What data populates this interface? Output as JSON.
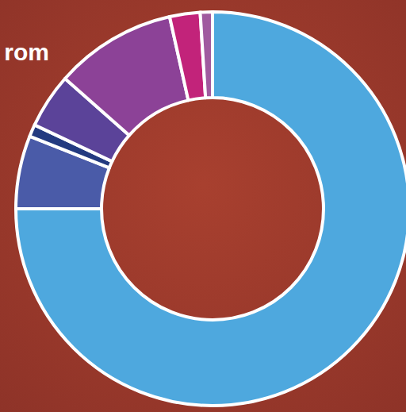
{
  "chart_data": {
    "type": "pie",
    "title": "rom",
    "values": [
      75,
      6,
      1,
      4.5,
      10,
      2.5,
      1
    ],
    "colors": [
      "#4ea8de",
      "#4a5ba8",
      "#233a80",
      "#5b4399",
      "#8c4297",
      "#c2237a",
      "#a05a9f"
    ]
  }
}
